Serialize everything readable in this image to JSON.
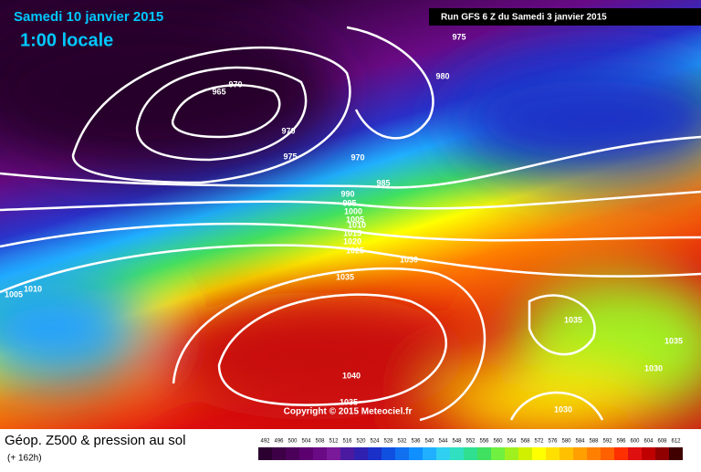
{
  "header": {
    "date": "Samedi 10 janvier 2015",
    "time": "1:00 locale",
    "run": "Run GFS 6 Z du Samedi 3 janvier 2015"
  },
  "isobars": [
    "975",
    "980",
    "965",
    "970",
    "970",
    "975",
    "970",
    "985",
    "990",
    "995",
    "1000",
    "1005",
    "1010",
    "1015",
    "1020",
    "1025",
    "1030",
    "1035",
    "1040",
    "1035",
    "1035",
    "1035",
    "1030",
    "1030",
    "1005",
    "1010"
  ],
  "copyright": "Copyright © 2015 Meteociel.fr",
  "footer": {
    "title": "Géop. Z500 & pression au sol",
    "lead": "(+ 162h)"
  },
  "scale": {
    "labels": [
      492,
      496,
      500,
      504,
      508,
      512,
      516,
      520,
      524,
      528,
      532,
      536,
      540,
      544,
      548,
      552,
      556,
      560,
      564,
      568,
      572,
      576,
      580,
      584,
      588,
      592,
      596,
      600,
      604,
      608,
      612
    ],
    "colors": [
      "#2b0030",
      "#3d0046",
      "#4b005a",
      "#5c0070",
      "#6a0a85",
      "#7a1a9a",
      "#4a1aa0",
      "#3020b0",
      "#1a30c8",
      "#1050e0",
      "#1070f0",
      "#1090ff",
      "#20b0ff",
      "#30d0f0",
      "#30e0c0",
      "#30e090",
      "#40e060",
      "#70f040",
      "#a0f020",
      "#d0f000",
      "#ffff00",
      "#ffe000",
      "#ffc000",
      "#ffa000",
      "#ff8000",
      "#ff6000",
      "#ff3000",
      "#e01010",
      "#c00000",
      "#900000",
      "#400000"
    ]
  }
}
